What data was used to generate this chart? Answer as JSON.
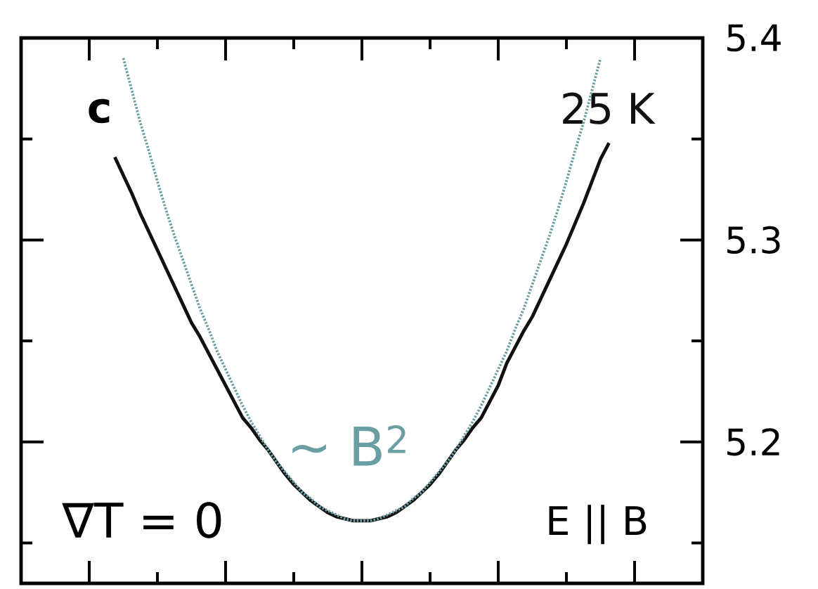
{
  "chart_data": {
    "type": "line",
    "title": "c",
    "categories": [
      null,
      null,
      null,
      null,
      null,
      null,
      null,
      null,
      null,
      null,
      null,
      null,
      null,
      null,
      null,
      null,
      null,
      null,
      null,
      null,
      null,
      null,
      null,
      null,
      null,
      null,
      null,
      null,
      null,
      null,
      null,
      null,
      null,
      null,
      null,
      null,
      null,
      null,
      null,
      null,
      null,
      null,
      null,
      null,
      null,
      null,
      null,
      null,
      null,
      null,
      null,
      null,
      null,
      null,
      null,
      null,
      null,
      null,
      null,
      null,
      null,
      null,
      null,
      null,
      null,
      null,
      null,
      null,
      null,
      null,
      null,
      null,
      null,
      null,
      null,
      null,
      null,
      null,
      null,
      null,
      null
    ],
    "series": [
      {
        "name": "25 K",
        "color": "#111111",
        "line_style": "solid",
        "values": [
          null,
          null,
          null,
          null,
          null,
          null,
          null,
          null,
          null,
          null,
          null,
          5.341,
          5.332,
          5.323,
          5.313,
          5.304,
          5.295,
          5.286,
          5.277,
          5.268,
          5.259,
          5.252,
          5.244,
          5.236,
          5.228,
          5.22,
          5.212,
          5.207,
          5.201,
          5.196,
          5.19,
          5.184,
          5.179,
          5.175,
          5.171,
          5.168,
          5.165,
          5.163,
          5.162,
          5.161,
          5.161,
          5.161,
          5.162,
          5.163,
          5.165,
          5.168,
          5.171,
          5.175,
          5.179,
          5.184,
          5.19,
          5.196,
          5.201,
          5.207,
          5.212,
          5.22,
          5.228,
          5.239,
          5.247,
          5.255,
          5.262,
          5.271,
          5.28,
          5.289,
          5.298,
          5.308,
          5.318,
          5.329,
          5.34,
          5.348,
          null,
          null,
          null,
          null,
          null,
          null,
          null,
          null,
          null,
          null,
          null
        ]
      },
      {
        "name": "~ B$^{2}$",
        "color": "#6a9ea3",
        "line_style": "dotted",
        "values": [
          null,
          null,
          null,
          null,
          null,
          null,
          null,
          null,
          null,
          null,
          null,
          null,
          5.39,
          5.374,
          5.358,
          5.344,
          5.329,
          5.315,
          5.302,
          5.29,
          5.278,
          5.266,
          5.256,
          5.245,
          5.236,
          5.227,
          5.218,
          5.21,
          5.203,
          5.196,
          5.19,
          5.185,
          5.18,
          5.175,
          5.172,
          5.168,
          5.166,
          5.164,
          5.162,
          5.161,
          5.161,
          5.161,
          5.162,
          5.164,
          5.166,
          5.168,
          5.172,
          5.175,
          5.18,
          5.185,
          5.19,
          5.196,
          5.203,
          5.21,
          5.218,
          5.227,
          5.236,
          5.245,
          5.256,
          5.266,
          5.278,
          5.29,
          5.302,
          5.315,
          5.329,
          5.344,
          5.358,
          5.374,
          5.39,
          null,
          null,
          null,
          null,
          null,
          null,
          null,
          null,
          null,
          null,
          null,
          null
        ]
      }
    ],
    "ylim": [
      5.13,
      5.4
    ],
    "yticks": [
      {
        "value": 5.15,
        "label": null
      },
      5.2,
      {
        "value": 5.25,
        "label": null
      },
      5.3,
      {
        "value": 5.35,
        "label": null
      },
      5.4
    ],
    "tick_labels": "y",
    "marker": "none",
    "annotations": [
      "∇T = 0",
      "E || B"
    ]
  }
}
